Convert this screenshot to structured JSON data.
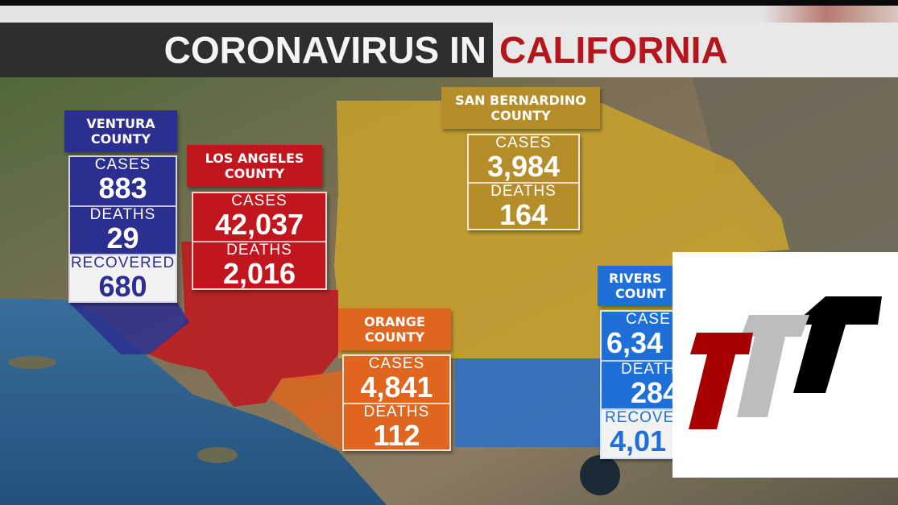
{
  "title": {
    "part1": "CORONAVIRUS IN",
    "part2": "CALIFORNIA"
  },
  "colors": {
    "ventura": "#2b2f8f",
    "los_angeles": "#c1161d",
    "san_bernardino": "#b58d29",
    "orange": "#e0661f",
    "riverside": "#1f6fd8",
    "title_red": "#b5161c"
  },
  "counties": {
    "ventura": {
      "name_line1": "VENTURA",
      "name_line2": "COUNTY",
      "cases_label": "CASES",
      "cases": "883",
      "deaths_label": "DEATHS",
      "deaths": "29",
      "recovered_label": "RECOVERED",
      "recovered": "680"
    },
    "los_angeles": {
      "name_line1": "LOS ANGELES",
      "name_line2": "COUNTY",
      "cases_label": "CASES",
      "cases": "42,037",
      "deaths_label": "DEATHS",
      "deaths": "2,016"
    },
    "san_bernardino": {
      "name_line1": "SAN BERNARDINO",
      "name_line2": "COUNTY",
      "cases_label": "CASES",
      "cases": "3,984",
      "deaths_label": "DEATHS",
      "deaths": "164"
    },
    "orange": {
      "name_line1": "ORANGE",
      "name_line2": "COUNTY",
      "cases_label": "CASES",
      "cases": "4,841",
      "deaths_label": "DEATHS",
      "deaths": "112"
    },
    "riverside": {
      "name_line1": "RIVERS",
      "name_line2": "COUNT",
      "cases_label": "CASE",
      "cases": "6,34",
      "deaths_label": "DEATH",
      "deaths": "284",
      "recovered_label": "RECOVE",
      "recovered": "4,01"
    }
  },
  "logo": {
    "text": "TTT",
    "colors": [
      "#a60000",
      "#bdbdbd",
      "#000000"
    ]
  }
}
